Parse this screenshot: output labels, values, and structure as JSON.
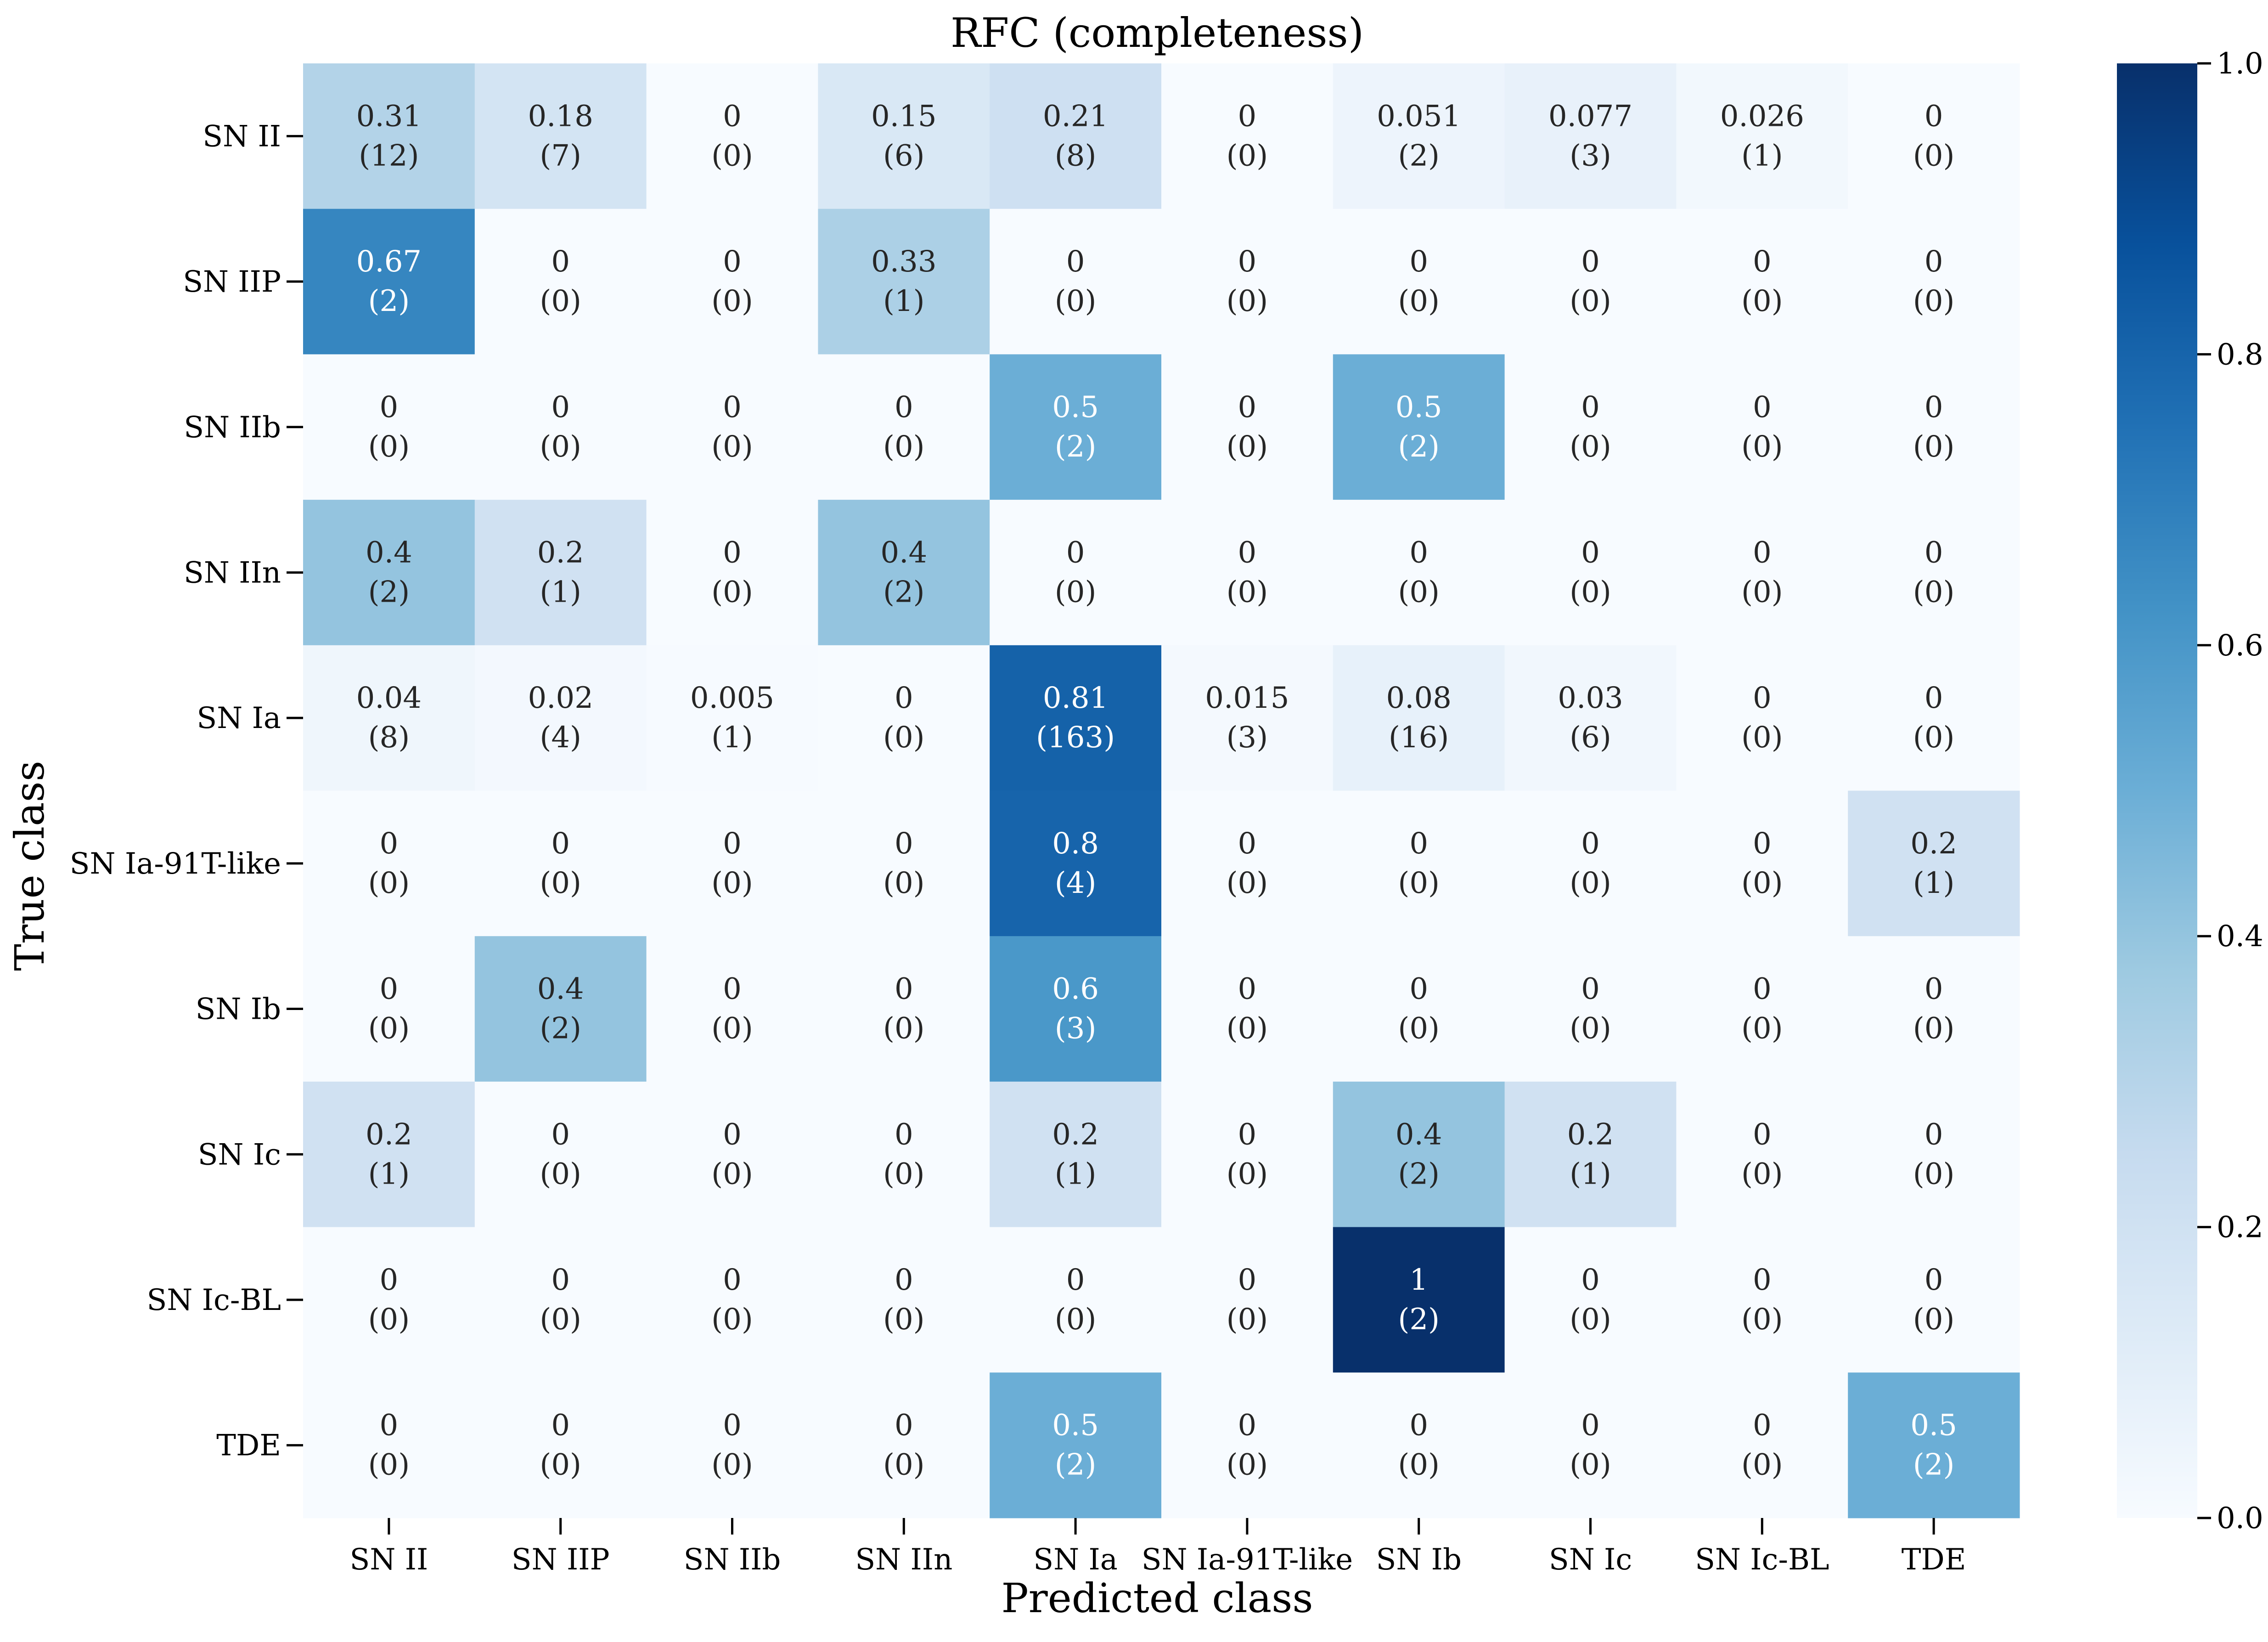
{
  "chart_data": {
    "type": "heatmap",
    "title": "RFC (completeness)",
    "xlabel": "Predicted class",
    "ylabel": "True class",
    "x_categories": [
      "SN II",
      "SN IIP",
      "SN IIb",
      "SN IIn",
      "SN Ia",
      "SN Ia-91T-like",
      "SN Ib",
      "SN Ic",
      "SN Ic-BL",
      "TDE"
    ],
    "y_categories": [
      "SN II",
      "SN IIP",
      "SN IIb",
      "SN IIn",
      "SN Ia",
      "SN Ia-91T-like",
      "SN Ib",
      "SN Ic",
      "SN Ic-BL",
      "TDE"
    ],
    "values": [
      [
        0.31,
        0.18,
        0,
        0.15,
        0.21,
        0,
        0.051,
        0.077,
        0.026,
        0
      ],
      [
        0.67,
        0,
        0,
        0.33,
        0,
        0,
        0,
        0,
        0,
        0
      ],
      [
        0,
        0,
        0,
        0,
        0.5,
        0,
        0.5,
        0,
        0,
        0
      ],
      [
        0.4,
        0.2,
        0,
        0.4,
        0,
        0,
        0,
        0,
        0,
        0
      ],
      [
        0.04,
        0.02,
        0.005,
        0,
        0.81,
        0.015,
        0.08,
        0.03,
        0,
        0
      ],
      [
        0,
        0,
        0,
        0,
        0.8,
        0,
        0,
        0,
        0,
        0.2
      ],
      [
        0,
        0.4,
        0,
        0,
        0.6,
        0,
        0,
        0,
        0,
        0
      ],
      [
        0.2,
        0,
        0,
        0,
        0.2,
        0,
        0.4,
        0.2,
        0,
        0
      ],
      [
        0,
        0,
        0,
        0,
        0,
        0,
        1,
        0,
        0,
        0
      ],
      [
        0,
        0,
        0,
        0,
        0.5,
        0,
        0,
        0,
        0,
        0.5
      ]
    ],
    "counts": [
      [
        12,
        7,
        0,
        6,
        8,
        0,
        2,
        3,
        1,
        0
      ],
      [
        2,
        0,
        0,
        1,
        0,
        0,
        0,
        0,
        0,
        0
      ],
      [
        0,
        0,
        0,
        0,
        2,
        0,
        2,
        0,
        0,
        0
      ],
      [
        2,
        1,
        0,
        2,
        0,
        0,
        0,
        0,
        0,
        0
      ],
      [
        8,
        4,
        1,
        0,
        163,
        3,
        16,
        6,
        0,
        0
      ],
      [
        0,
        0,
        0,
        0,
        4,
        0,
        0,
        0,
        0,
        1
      ],
      [
        0,
        2,
        0,
        0,
        3,
        0,
        0,
        0,
        0,
        0
      ],
      [
        1,
        0,
        0,
        0,
        1,
        0,
        2,
        1,
        0,
        0
      ],
      [
        0,
        0,
        0,
        0,
        0,
        0,
        2,
        0,
        0,
        0
      ],
      [
        0,
        0,
        0,
        0,
        2,
        0,
        0,
        0,
        0,
        2
      ]
    ],
    "value_labels": [
      [
        "0.31",
        "0.18",
        "0",
        "0.15",
        "0.21",
        "0",
        "0.051",
        "0.077",
        "0.026",
        "0"
      ],
      [
        "0.67",
        "0",
        "0",
        "0.33",
        "0",
        "0",
        "0",
        "0",
        "0",
        "0"
      ],
      [
        "0",
        "0",
        "0",
        "0",
        "0.5",
        "0",
        "0.5",
        "0",
        "0",
        "0"
      ],
      [
        "0.4",
        "0.2",
        "0",
        "0.4",
        "0",
        "0",
        "0",
        "0",
        "0",
        "0"
      ],
      [
        "0.04",
        "0.02",
        "0.005",
        "0",
        "0.81",
        "0.015",
        "0.08",
        "0.03",
        "0",
        "0"
      ],
      [
        "0",
        "0",
        "0",
        "0",
        "0.8",
        "0",
        "0",
        "0",
        "0",
        "0.2"
      ],
      [
        "0",
        "0.4",
        "0",
        "0",
        "0.6",
        "0",
        "0",
        "0",
        "0",
        "0"
      ],
      [
        "0.2",
        "0",
        "0",
        "0",
        "0.2",
        "0",
        "0.4",
        "0.2",
        "0",
        "0"
      ],
      [
        "0",
        "0",
        "0",
        "0",
        "0",
        "0",
        "1",
        "0",
        "0",
        "0"
      ],
      [
        "0",
        "0",
        "0",
        "0",
        "0.5",
        "0",
        "0",
        "0",
        "0",
        "0.5"
      ]
    ],
    "colorbar": {
      "range": [
        0.0,
        1.0
      ],
      "ticks": [
        0.0,
        0.2,
        0.4,
        0.6,
        0.8,
        1.0
      ],
      "tick_labels": [
        "0.0",
        "0.2",
        "0.4",
        "0.6",
        "0.8",
        "1.0"
      ],
      "colormap": "Blues",
      "color_low": "#f7fbff",
      "color_high": "#08306b"
    },
    "grid": false,
    "legend": "none"
  }
}
